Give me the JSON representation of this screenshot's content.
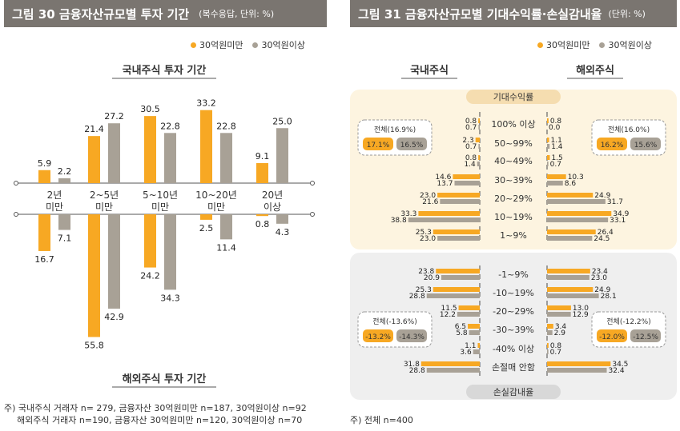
{
  "colors": {
    "orange": "#f7a823",
    "gray": "#a8a196",
    "header": "#7a7570",
    "beige": "#fdf4e0",
    "grayBg": "#efefef",
    "pill": "#f5ddb0"
  },
  "fig30": {
    "title": "그림 30  금융자산규모별 투자 기간",
    "unit": "(복수응답, 단위: %)",
    "legend": [
      "30억원미만",
      "30억원이상"
    ],
    "top_label": "국내주식 투자 기간",
    "bottom_label": "해외주식 투자 기간",
    "note1": "주) 국내주식 거래자 n= 279, 금융자산 30억원미만 n=187, 30억원이상  n=92",
    "note2": "해외주식 거래자 n=190, 금융자산  30억원미만 n=120, 30억원이상 n=70"
  },
  "fig31": {
    "title": "그림 31  금융자산규모별 기대수익률·손실감내율",
    "unit": "(단위: %)",
    "legend": [
      "30억원미만",
      "30억원이상"
    ],
    "col_domestic": "국내주식",
    "col_foreign": "해외주식",
    "section_top": "기대수익률",
    "section_bottom": "손실감내율",
    "note": "주) 전체 n=400"
  },
  "chart_data": [
    {
      "type": "bar",
      "title": "금융자산규모별 투자 기간",
      "categories": [
        "2년 미만",
        "2~5년 미만",
        "5~10년 미만",
        "10~20년 미만",
        "20년 이상"
      ],
      "domestic": {
        "label": "국내주식 투자 기간",
        "series": [
          {
            "name": "30억원미만",
            "values": [
              5.9,
              21.4,
              30.5,
              33.2,
              9.1
            ]
          },
          {
            "name": "30억원이상",
            "values": [
              2.2,
              27.2,
              22.8,
              22.8,
              25.0
            ]
          }
        ]
      },
      "foreign": {
        "label": "해외주식 투자 기간",
        "series": [
          {
            "name": "30억원미만",
            "values": [
              16.7,
              55.8,
              24.2,
              2.5,
              0.8
            ]
          },
          {
            "name": "30억원이상",
            "values": [
              7.1,
              42.9,
              34.3,
              11.4,
              4.3
            ]
          }
        ]
      },
      "value_labels_domestic": [
        [
          "5.9",
          "2.2"
        ],
        [
          "21.4",
          "27.2"
        ],
        [
          "30.5",
          "22.8"
        ],
        [
          "33.2",
          "22.8"
        ],
        [
          "9.1",
          "25.0"
        ]
      ],
      "value_labels_foreign": [
        [
          "16.7",
          "7.1"
        ],
        [
          "55.8",
          "42.9"
        ],
        [
          "24.2",
          "34.3"
        ],
        [
          "2.5",
          "11.4"
        ],
        [
          "0.8",
          "4.3"
        ]
      ]
    },
    {
      "type": "bar",
      "title": "금융자산규모별 기대수익률·손실감내율",
      "expected": {
        "label": "기대수익률",
        "categories": [
          "100% 이상",
          "50~99%",
          "40~49%",
          "30~39%",
          "20~29%",
          "10~19%",
          "1~9%"
        ],
        "domestic": {
          "series": [
            {
              "name": "30억원미만",
              "values": [
                0.8,
                2.3,
                0.8,
                14.6,
                23.0,
                33.3,
                25.3
              ]
            },
            {
              "name": "30억원이상",
              "values": [
                0.7,
                0.7,
                1.4,
                13.7,
                21.6,
                38.8,
                23.0
              ]
            }
          ]
        },
        "foreign": {
          "series": [
            {
              "name": "30억원미만",
              "values": [
                0.8,
                1.1,
                1.5,
                10.3,
                24.9,
                34.9,
                26.4
              ]
            },
            {
              "name": "30억원이상",
              "values": [
                0.0,
                1.4,
                0.7,
                8.6,
                31.7,
                33.1,
                24.5
              ]
            }
          ]
        },
        "labels_domestic": [
          [
            "0.8",
            "0.7"
          ],
          [
            "2.3",
            "0.7"
          ],
          [
            "0.8",
            "1.4"
          ],
          [
            "14.6",
            "13.7"
          ],
          [
            "23.0",
            "21.6"
          ],
          [
            "33.3",
            "38.8"
          ],
          [
            "25.3",
            "23.0"
          ]
        ],
        "labels_foreign": [
          [
            "0.8",
            "0.0"
          ],
          [
            "1.1",
            "1.4"
          ],
          [
            "1.5",
            "0.7"
          ],
          [
            "10.3",
            "8.6"
          ],
          [
            "24.9",
            "31.7"
          ],
          [
            "34.9",
            "33.1"
          ],
          [
            "26.4",
            "24.5"
          ]
        ],
        "total_domestic": {
          "label": "전체(16.9%)",
          "a": "17.1%",
          "b": "16.5%"
        },
        "total_foreign": {
          "label": "전체(16.0%)",
          "a": "16.2%",
          "b": "15.6%"
        }
      },
      "loss": {
        "label": "손실감내율",
        "categories": [
          "-1~9%",
          "-10~19%",
          "-20~29%",
          "-30~39%",
          "-40% 이상",
          "손절매 안함"
        ],
        "domestic": {
          "series": [
            {
              "name": "30억원미만",
              "values": [
                23.8,
                25.3,
                11.5,
                6.5,
                1.1,
                31.8
              ]
            },
            {
              "name": "30억원이상",
              "values": [
                20.9,
                28.8,
                12.2,
                5.8,
                3.6,
                28.8
              ]
            }
          ]
        },
        "foreign": {
          "series": [
            {
              "name": "30억원미만",
              "values": [
                23.4,
                24.9,
                13.0,
                3.4,
                0.8,
                34.5
              ]
            },
            {
              "name": "30억원이상",
              "values": [
                23.0,
                28.1,
                12.9,
                2.9,
                0.7,
                32.4
              ]
            }
          ]
        },
        "labels_domestic": [
          [
            "23.8",
            "20.9"
          ],
          [
            "25.3",
            "28.8"
          ],
          [
            "11.5",
            "12.2"
          ],
          [
            "6.5",
            "5.8"
          ],
          [
            "1.1",
            "3.6"
          ],
          [
            "31.8",
            "28.8"
          ]
        ],
        "labels_foreign": [
          [
            "23.4",
            "23.0"
          ],
          [
            "24.9",
            "28.1"
          ],
          [
            "13.0",
            "12.9"
          ],
          [
            "3.4",
            "2.9"
          ],
          [
            "0.8",
            "0.7"
          ],
          [
            "34.5",
            "32.4"
          ]
        ],
        "total_domestic": {
          "label": "전체(-13.6%)",
          "a": "-13.2%",
          "b": "-14.3%"
        },
        "total_foreign": {
          "label": "전체(-12.2%)",
          "a": "-12.0%",
          "b": "-12.5%"
        }
      }
    }
  ]
}
